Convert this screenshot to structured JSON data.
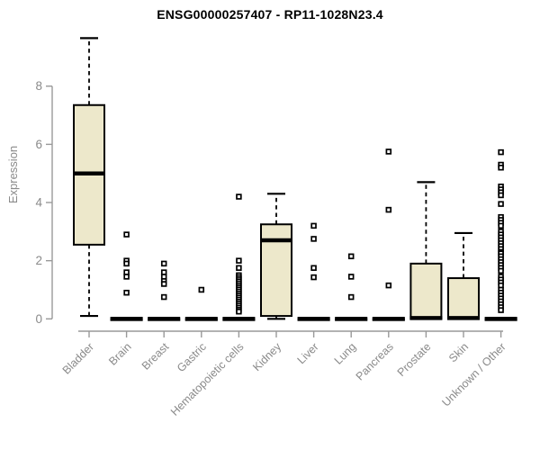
{
  "chart_data": {
    "type": "boxplot",
    "title": "ENSG00000257407 - RP11-1028N23.4",
    "ylabel": "Expression",
    "xlabel": "",
    "ylim": [
      0,
      9.7
    ],
    "yticks": [
      0,
      2,
      4,
      6,
      8
    ],
    "grid": false,
    "legend": "none",
    "categories": [
      "Bladder",
      "Brain",
      "Breast",
      "Gastric",
      "Hematopoietic cells",
      "Kidney",
      "Liver",
      "Lung",
      "Pancreas",
      "Prostate",
      "Skin",
      "Unknown / Other"
    ],
    "boxes": [
      {
        "category": "Bladder",
        "min": 0.1,
        "q1": 2.55,
        "median": 5.0,
        "q3": 7.35,
        "max": 9.65,
        "outliers": []
      },
      {
        "category": "Brain",
        "min": 0,
        "q1": 0,
        "median": 0,
        "q3": 0,
        "max": 0,
        "outliers": [
          2.9,
          2.0,
          1.9,
          1.6,
          1.45,
          0.9
        ]
      },
      {
        "category": "Breast",
        "min": 0,
        "q1": 0,
        "median": 0,
        "q3": 0,
        "max": 0,
        "outliers": [
          1.9,
          1.6,
          1.45,
          1.3,
          1.2,
          0.75
        ]
      },
      {
        "category": "Gastric",
        "min": 0,
        "q1": 0,
        "median": 0,
        "q3": 0,
        "max": 0,
        "outliers": [
          1.0
        ]
      },
      {
        "category": "Hematopoietic cells",
        "min": 0,
        "q1": 0,
        "median": 0,
        "q3": 0,
        "max": 0,
        "outliers": [
          4.2,
          2.0,
          1.75,
          1.5,
          1.43,
          1.36,
          1.29,
          1.22,
          1.15,
          1.08,
          1.01,
          0.94,
          0.87,
          0.8,
          0.73,
          0.66,
          0.59,
          0.52,
          0.45,
          0.38,
          0.31,
          0.25
        ]
      },
      {
        "category": "Kidney",
        "min": 0,
        "q1": 0.1,
        "median": 2.7,
        "q3": 3.25,
        "max": 4.3,
        "outliers": []
      },
      {
        "category": "Liver",
        "min": 0,
        "q1": 0,
        "median": 0,
        "q3": 0,
        "max": 0,
        "outliers": [
          3.2,
          2.75,
          1.75,
          1.43
        ]
      },
      {
        "category": "Lung",
        "min": 0,
        "q1": 0,
        "median": 0,
        "q3": 0,
        "max": 0,
        "outliers": [
          2.15,
          1.45,
          0.75
        ]
      },
      {
        "category": "Pancreas",
        "min": 0,
        "q1": 0,
        "median": 0,
        "q3": 0,
        "max": 0,
        "outliers": [
          5.75,
          3.75,
          1.15
        ]
      },
      {
        "category": "Prostate",
        "min": 0,
        "q1": 0,
        "median": 0.03,
        "q3": 1.9,
        "max": 4.7,
        "outliers": []
      },
      {
        "category": "Skin",
        "min": 0,
        "q1": 0,
        "median": 0.03,
        "q3": 1.4,
        "max": 2.95,
        "outliers": []
      },
      {
        "category": "Unknown / Other",
        "min": 0,
        "q1": 0,
        "median": 0,
        "q3": 0,
        "max": 0,
        "outliers": [
          5.73,
          5.3,
          5.2,
          4.55,
          4.45,
          4.35,
          4.25,
          3.95,
          3.5,
          3.4,
          3.3,
          3.2,
          3.0,
          2.9,
          2.8,
          2.7,
          2.6,
          2.5,
          2.4,
          2.3,
          2.25,
          2.15,
          2.05,
          1.95,
          1.85,
          1.75,
          1.65,
          1.45,
          1.35,
          1.25,
          1.15,
          1.0,
          0.9,
          0.8,
          0.7,
          0.6,
          0.5,
          0.4,
          0.3
        ]
      }
    ],
    "colors": {
      "box_fill": "#ede8cb",
      "box_border": "#000000",
      "median": "#000000",
      "whisker": "#000000",
      "axis": "#999999",
      "tick_label": "#8a8a8a",
      "title": "#000000",
      "background": "#ffffff"
    }
  }
}
